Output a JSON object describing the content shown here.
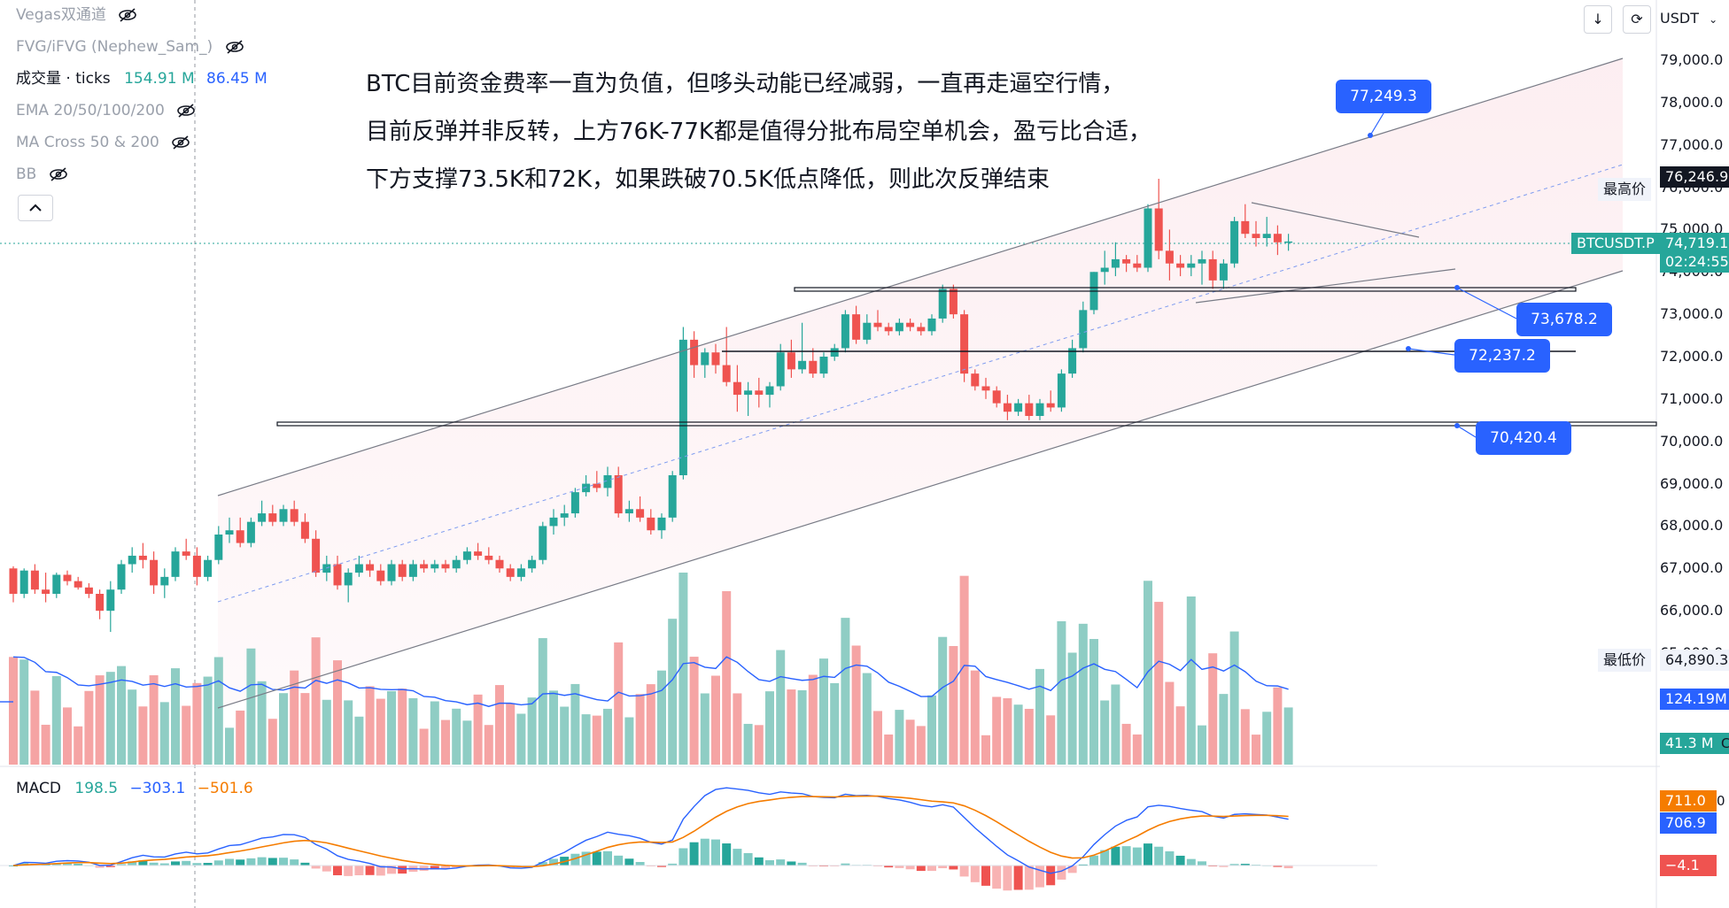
{
  "toolbar": {
    "scroll_icon": "arrow-down-icon",
    "reset_icon": "refresh-icon",
    "currency": "USDT",
    "currency_dropdown_icon": "chevron-down-icon"
  },
  "indicators": [
    {
      "label": "Vegas双通道",
      "hidden": true
    },
    {
      "label": "FVG/iFVG (Nephew_Sam_)",
      "hidden": true
    },
    {
      "label": "成交量 · ticks",
      "value1": "154.91 M",
      "value2": "86.45 M",
      "hidden": false
    },
    {
      "label": "EMA 20/50/100/200",
      "hidden": true
    },
    {
      "label": "MA Cross 50 & 200",
      "hidden": true
    },
    {
      "label": "BB",
      "hidden": true
    }
  ],
  "annotation_lines": [
    "BTC目前资金费率一直为负值，但哆头动能已经减弱，一直再走逼空行情，",
    "目前反弹并非反转，上方76K-77K都是值得分批布局空单机会，盈亏比合适，",
    "下方支撑73.5K和72K，如果跌破70.5K低点降低，则此次反弹结束"
  ],
  "price_axis": {
    "labels": [
      "79,000.0",
      "78,000.0",
      "77,000.0",
      "76,000.0",
      "75,000.0",
      "74,000.0",
      "73,000.0",
      "72,000.0",
      "71,000.0",
      "70,000.0",
      "69,000.0",
      "68,000.0",
      "67,000.0",
      "66,000.0",
      "65,000.0"
    ]
  },
  "tags": {
    "high_label": "最高价",
    "high_value": "76,246.9",
    "symbol": "BTCUSDT.P",
    "last_price": "74,719.1",
    "countdown": "02:24:55",
    "low_label": "最低价",
    "low_value": "64,890.3",
    "vol1": "124.19M",
    "vol2": "41.3 M",
    "vol_extra": "C"
  },
  "callouts": [
    "77,249.3",
    "73,678.2",
    "72,237.2",
    "70,420.4"
  ],
  "macd": {
    "label": "MACD",
    "v1": "198.5",
    "v2": "−303.1",
    "v3": "−501.6",
    "tag_orange": "711.0",
    "tag_orange_suffix": "0",
    "tag_blue": "706.9",
    "tag_red": "−4.1"
  },
  "colors": {
    "up": "#26a69a",
    "down": "#ef5350",
    "accent": "#2962ff",
    "macd_signal": "#f57c00"
  },
  "chart_data": {
    "type": "candlestick",
    "symbol": "BTCUSDT.P",
    "ylim": [
      64890.3,
      79200
    ],
    "candles": [
      [
        67000,
        67050,
        66200,
        66400
      ],
      [
        66400,
        67000,
        66300,
        66950
      ],
      [
        66950,
        67100,
        66400,
        66500
      ],
      [
        66500,
        66900,
        66200,
        66400
      ],
      [
        66400,
        66900,
        66300,
        66850
      ],
      [
        66850,
        66950,
        66600,
        66700
      ],
      [
        66700,
        66800,
        66500,
        66550
      ],
      [
        66550,
        66650,
        66300,
        66400
      ],
      [
        66400,
        66500,
        65800,
        66000
      ],
      [
        66000,
        66700,
        65500,
        66500
      ],
      [
        66500,
        67200,
        66400,
        67100
      ],
      [
        67100,
        67500,
        66900,
        67300
      ],
      [
        67300,
        67600,
        67000,
        67200
      ],
      [
        67200,
        67400,
        66400,
        66600
      ],
      [
        66600,
        67000,
        66300,
        66800
      ],
      [
        66800,
        67500,
        66700,
        67400
      ],
      [
        67400,
        67700,
        67200,
        67300
      ],
      [
        67300,
        67500,
        66600,
        66800
      ],
      [
        66800,
        67300,
        66700,
        67200
      ],
      [
        67200,
        68000,
        67100,
        67800
      ],
      [
        67800,
        68200,
        67600,
        67900
      ],
      [
        67900,
        68200,
        67500,
        67600
      ],
      [
        67600,
        68200,
        67500,
        68100
      ],
      [
        68100,
        68600,
        68000,
        68300
      ],
      [
        68300,
        68500,
        68000,
        68100
      ],
      [
        68100,
        68500,
        68000,
        68400
      ],
      [
        68400,
        68600,
        68000,
        68100
      ],
      [
        68100,
        68300,
        67600,
        67700
      ],
      [
        67700,
        67900,
        66800,
        66900
      ],
      [
        66900,
        67300,
        66700,
        67100
      ],
      [
        67100,
        67300,
        66500,
        66600
      ],
      [
        66600,
        67000,
        66200,
        66900
      ],
      [
        66900,
        67300,
        66800,
        67100
      ],
      [
        67100,
        67200,
        66800,
        66950
      ],
      [
        66950,
        67100,
        66600,
        66700
      ],
      [
        66700,
        67200,
        66600,
        67100
      ],
      [
        67100,
        67200,
        66700,
        66800
      ],
      [
        66800,
        67200,
        66700,
        67100
      ],
      [
        67100,
        67200,
        66900,
        67000
      ],
      [
        67000,
        67200,
        66900,
        67100
      ],
      [
        67100,
        67200,
        66900,
        67000
      ],
      [
        67000,
        67300,
        66900,
        67200
      ],
      [
        67200,
        67500,
        67100,
        67400
      ],
      [
        67400,
        67600,
        67200,
        67300
      ],
      [
        67300,
        67500,
        67100,
        67200
      ],
      [
        67200,
        67300,
        66900,
        67000
      ],
      [
        67000,
        67100,
        66700,
        66800
      ],
      [
        66800,
        67100,
        66700,
        67000
      ],
      [
        67000,
        67300,
        66900,
        67200
      ],
      [
        67200,
        68100,
        67100,
        68000
      ],
      [
        68000,
        68400,
        67800,
        68200
      ],
      [
        68200,
        68500,
        68000,
        68300
      ],
      [
        68300,
        68900,
        68200,
        68800
      ],
      [
        68800,
        69200,
        68700,
        69000
      ],
      [
        69000,
        69300,
        68800,
        68900
      ],
      [
        68900,
        69400,
        68700,
        69200
      ],
      [
        69200,
        69400,
        68200,
        68300
      ],
      [
        68300,
        68600,
        68100,
        68400
      ],
      [
        68400,
        68700,
        68100,
        68200
      ],
      [
        68200,
        68400,
        67800,
        67900
      ],
      [
        67900,
        68300,
        67700,
        68200
      ],
      [
        68200,
        69300,
        68100,
        69200
      ],
      [
        69200,
        72700,
        69100,
        72400
      ],
      [
        72400,
        72600,
        71500,
        71800
      ],
      [
        71800,
        72200,
        71500,
        72100
      ],
      [
        72100,
        72300,
        71600,
        71800
      ],
      [
        71800,
        72700,
        71300,
        71400
      ],
      [
        71400,
        71800,
        70700,
        71100
      ],
      [
        71100,
        71400,
        70600,
        71200
      ],
      [
        71200,
        71500,
        70800,
        71100
      ],
      [
        71100,
        71400,
        70800,
        71300
      ],
      [
        71300,
        72300,
        71200,
        72100
      ],
      [
        72100,
        72400,
        71500,
        71700
      ],
      [
        71700,
        72800,
        71600,
        71900
      ],
      [
        71900,
        72200,
        71500,
        71600
      ],
      [
        71600,
        72100,
        71500,
        72000
      ],
      [
        72000,
        72300,
        71900,
        72200
      ],
      [
        72200,
        73100,
        72100,
        73000
      ],
      [
        73000,
        73200,
        72300,
        72400
      ],
      [
        72400,
        73000,
        72300,
        72800
      ],
      [
        72800,
        73100,
        72600,
        72700
      ],
      [
        72700,
        72800,
        72500,
        72600
      ],
      [
        72600,
        72900,
        72500,
        72800
      ],
      [
        72800,
        72900,
        72600,
        72700
      ],
      [
        72700,
        72800,
        72500,
        72600
      ],
      [
        72600,
        73000,
        72500,
        72900
      ],
      [
        72900,
        73700,
        72800,
        73600
      ],
      [
        73600,
        73700,
        72900,
        73000
      ],
      [
        73000,
        73100,
        71400,
        71600
      ],
      [
        71600,
        71700,
        71200,
        71300
      ],
      [
        71300,
        71500,
        71000,
        71200
      ],
      [
        71200,
        71300,
        70800,
        70900
      ],
      [
        70900,
        71100,
        70500,
        70700
      ],
      [
        70700,
        71000,
        70600,
        70900
      ],
      [
        70900,
        71100,
        70500,
        70600
      ],
      [
        70600,
        71000,
        70500,
        70900
      ],
      [
        70900,
        71200,
        70700,
        70800
      ],
      [
        70800,
        71700,
        70700,
        71600
      ],
      [
        71600,
        72400,
        71500,
        72200
      ],
      [
        72200,
        73300,
        72100,
        73100
      ],
      [
        73100,
        74000,
        73000,
        74000
      ],
      [
        74000,
        74500,
        73700,
        74100
      ],
      [
        74100,
        74700,
        73900,
        74300
      ],
      [
        74300,
        74400,
        74000,
        74200
      ],
      [
        74200,
        74400,
        74000,
        74100
      ],
      [
        74100,
        75600,
        74000,
        75500
      ],
      [
        75500,
        76200,
        74300,
        74500
      ],
      [
        74500,
        75000,
        73800,
        74200
      ],
      [
        74200,
        74400,
        73900,
        74100
      ],
      [
        74100,
        74400,
        73900,
        74200
      ],
      [
        74200,
        74500,
        73700,
        74300
      ],
      [
        74300,
        74500,
        73600,
        73800
      ],
      [
        73800,
        74300,
        73600,
        74200
      ],
      [
        74200,
        75300,
        74100,
        75200
      ],
      [
        75200,
        75600,
        74800,
        74900
      ],
      [
        74900,
        75200,
        74600,
        74800
      ],
      [
        74800,
        75300,
        74600,
        74900
      ],
      [
        74900,
        75100,
        74400,
        74700
      ],
      [
        74700,
        74900,
        74500,
        74719
      ]
    ]
  }
}
